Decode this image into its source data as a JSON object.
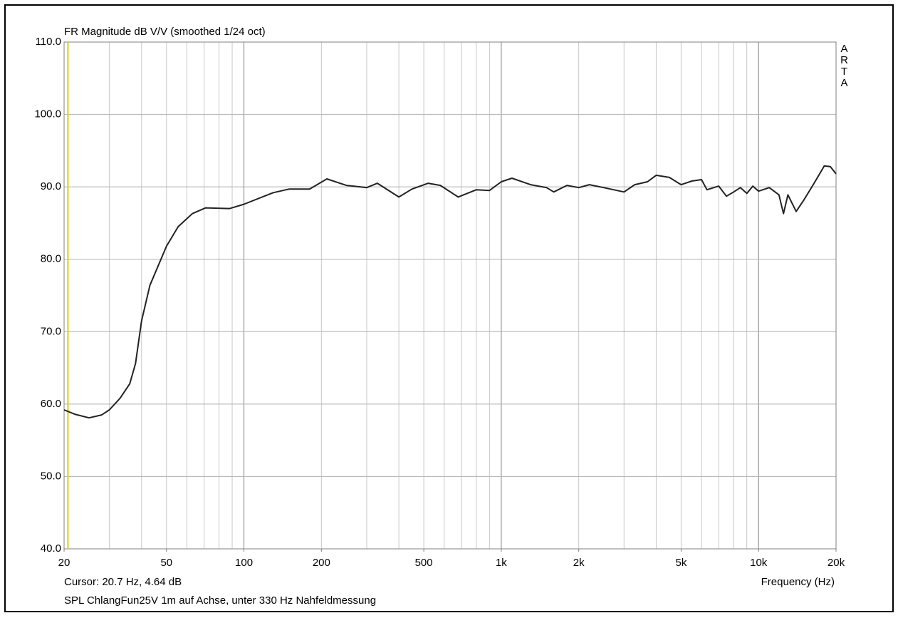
{
  "chart_data": {
    "type": "line",
    "title": "FR Magnitude dB V/V (smoothed 1/24 oct)",
    "side_label": "ARTA",
    "x_label": "Frequency (Hz)",
    "cursor_text": "Cursor: 20.7 Hz, 4.64 dB",
    "cursor_x": 20.7,
    "cursor_color": "#e0d000",
    "footer": "SPL ChlangFun25V 1m auf Achse, unter 330 Hz Nahfeldmessung",
    "xscale": "log",
    "grid": true,
    "xlim": [
      20,
      20000
    ],
    "ylim": [
      40,
      110
    ],
    "xticks": [
      20,
      50,
      100,
      200,
      500,
      {
        "value": 1000,
        "label": "1k"
      },
      {
        "value": 2000,
        "label": "2k"
      },
      {
        "value": 5000,
        "label": "5k"
      },
      {
        "value": 10000,
        "label": "10k"
      },
      {
        "value": 20000,
        "label": "20k"
      }
    ],
    "yticks": [
      {
        "value": 40,
        "label": "40.0"
      },
      {
        "value": 50,
        "label": "50.0"
      },
      {
        "value": 60,
        "label": "60.0"
      },
      {
        "value": 70,
        "label": "70.0"
      },
      {
        "value": 80,
        "label": "80.0"
      },
      {
        "value": 90,
        "label": "90.0"
      },
      {
        "value": 100,
        "label": "100.0"
      },
      {
        "value": 110,
        "label": "110.0"
      }
    ],
    "x": [
      20,
      22,
      25,
      28,
      30,
      33,
      36,
      37.9,
      40,
      43.1,
      50,
      55.5,
      63,
      71,
      88,
      100,
      130,
      150,
      180,
      210,
      250,
      300,
      330,
      400,
      450,
      520,
      580,
      680,
      800,
      900,
      1000,
      1100,
      1300,
      1500,
      1600,
      1800,
      2000,
      2200,
      2500,
      3000,
      3300,
      3700,
      4000,
      4500,
      5000,
      5500,
      6000,
      6300,
      7000,
      7500,
      8000,
      8500,
      9000,
      9500,
      10000,
      11000,
      12000,
      12500,
      13000,
      14000,
      15000,
      16500,
      18000,
      19000,
      20000
    ],
    "series": [
      {
        "color": "#222222",
        "values": [
          59.2,
          58.6,
          58.1,
          58.5,
          59.2,
          60.8,
          62.8,
          65.6,
          71.5,
          76.4,
          81.8,
          84.5,
          86.3,
          87.1,
          87.0,
          87.6,
          89.2,
          89.7,
          89.7,
          91.1,
          90.2,
          89.9,
          90.5,
          88.6,
          89.7,
          90.5,
          90.2,
          88.6,
          89.6,
          89.5,
          90.7,
          91.2,
          90.3,
          89.9,
          89.3,
          90.2,
          89.9,
          90.3,
          89.9,
          89.3,
          90.3,
          90.7,
          91.6,
          91.3,
          90.3,
          90.8,
          91.0,
          89.6,
          90.1,
          88.7,
          89.3,
          89.9,
          89.1,
          90.1,
          89.4,
          89.9,
          88.9,
          86.3,
          88.9,
          86.6,
          88.2,
          90.6,
          92.9,
          92.8,
          91.8
        ]
      }
    ]
  }
}
